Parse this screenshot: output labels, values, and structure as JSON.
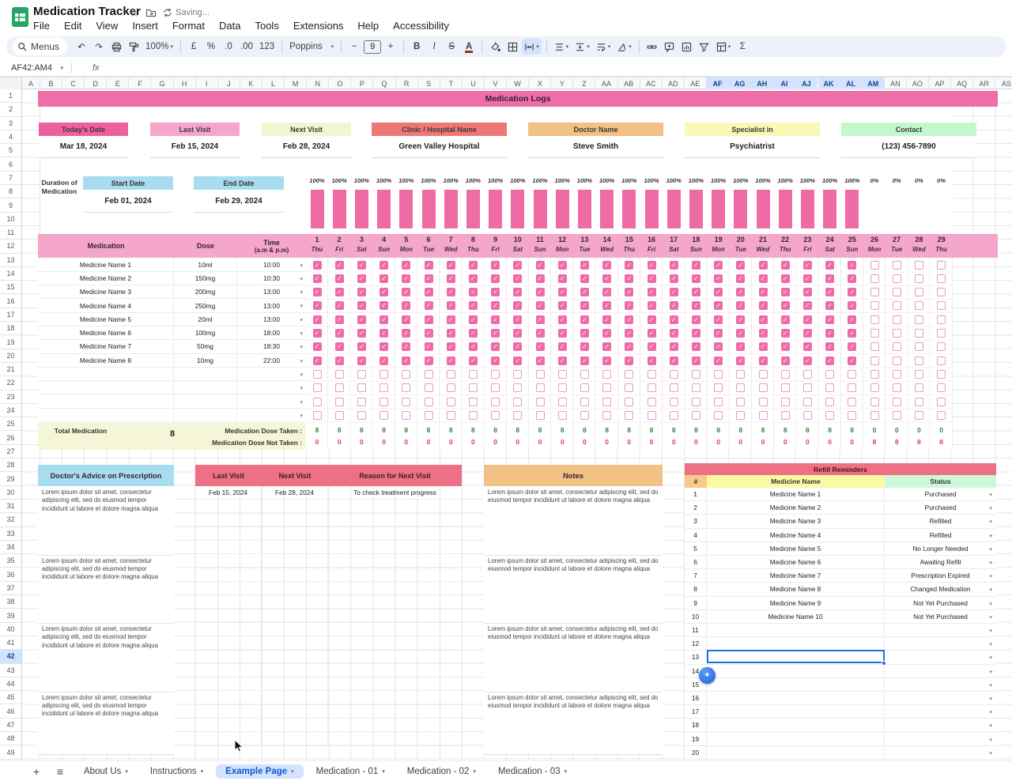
{
  "app": {
    "title": "Medication Tracker",
    "saving": "Saving...",
    "name_box": "AF42:AM4",
    "fx": "fx",
    "menus": [
      "File",
      "Edit",
      "View",
      "Insert",
      "Format",
      "Data",
      "Tools",
      "Extensions",
      "Help",
      "Accessibility"
    ]
  },
  "toolbar": {
    "menus_label": "Menus",
    "zoom": "100%",
    "currency": "£",
    "percent": "%",
    "dec_dec": ".0",
    "dec_inc": ".00",
    "num_fmt": "123",
    "font_name": "Poppins",
    "font_size": "9",
    "minus": "−",
    "plus": "+",
    "bold": "B",
    "italic": "I",
    "strike": "S",
    "text_color": "A",
    "sigma": "Σ"
  },
  "grid": {
    "columns": [
      "A",
      "B",
      "C",
      "D",
      "E",
      "F",
      "G",
      "H",
      "I",
      "J",
      "K",
      "L",
      "M",
      "N",
      "O",
      "P",
      "Q",
      "R",
      "S",
      "T",
      "U",
      "V",
      "W",
      "X",
      "Y",
      "Z",
      "AA",
      "AB",
      "AC",
      "AD",
      "AE",
      "AF",
      "AG",
      "AH",
      "AI",
      "AJ",
      "AK",
      "AL",
      "AM",
      "AN",
      "AO",
      "AP",
      "AQ",
      "AR",
      "AS"
    ],
    "selected_columns": {
      "from": "AF",
      "to": "AM"
    },
    "row_count": 49,
    "selected_row": 42
  },
  "sheet": {
    "banner": "Medication Logs",
    "cards": [
      {
        "label": "Today's Date",
        "value": "Mar 18, 2024",
        "color": "#ee5f9e"
      },
      {
        "label": "Last Visit",
        "value": "Feb 15, 2024",
        "color": "#f4a6cb"
      },
      {
        "label": "Next Visit",
        "value": "Feb 28, 2024",
        "color": "#f2f5cf"
      },
      {
        "label": "Clinic / Hospital Name",
        "value": "Green Valley Hospital",
        "color": "#ee7876"
      },
      {
        "label": "Doctor Name",
        "value": "Steve Smith",
        "color": "#f2c185"
      },
      {
        "label": "Specialist in",
        "value": "Psychiatrist",
        "color": "#f7f9b5"
      },
      {
        "label": "Contact",
        "value": "(123) 456-7890",
        "color": "#c3f8cf"
      }
    ],
    "duration": {
      "label": "Duration of Medication",
      "start_label": "Start Date",
      "start_value": "Feb 01, 2024",
      "end_label": "End Date",
      "end_value": "Feb 29, 2024"
    },
    "table": {
      "h_med": "Medication",
      "h_dose": "Dose",
      "h_time1": "Time",
      "h_time2": "(a.m & p.m)",
      "medicines": [
        {
          "name": "Medicine Name 1",
          "dose": "10ml",
          "time": "10:00"
        },
        {
          "name": "Medicine Name 2",
          "dose": "150mg",
          "time": "10:30"
        },
        {
          "name": "Medicine Name 3",
          "dose": "200mg",
          "time": "13:00"
        },
        {
          "name": "Medicine Name 4",
          "dose": "250mg",
          "time": "13:00"
        },
        {
          "name": "Medicine Name 5",
          "dose": "20ml",
          "time": "13:00"
        },
        {
          "name": "Medicine Name 6",
          "dose": "100mg",
          "time": "18:00"
        },
        {
          "name": "Medicine Name 7",
          "dose": "50mg",
          "time": "18:30"
        },
        {
          "name": "Medicine Name 8",
          "dose": "10mg",
          "time": "22:00"
        }
      ],
      "empty_row_count": 4
    },
    "days": [
      {
        "num": 1,
        "dow": "Thu",
        "pct": "100%",
        "taken": 8,
        "not_taken": 0
      },
      {
        "num": 2,
        "dow": "Fri",
        "pct": "100%",
        "taken": 8,
        "not_taken": 0
      },
      {
        "num": 3,
        "dow": "Sat",
        "pct": "100%",
        "taken": 8,
        "not_taken": 0
      },
      {
        "num": 4,
        "dow": "Sun",
        "pct": "100%",
        "taken": 8,
        "not_taken": 0
      },
      {
        "num": 5,
        "dow": "Mon",
        "pct": "100%",
        "taken": 8,
        "not_taken": 0
      },
      {
        "num": 6,
        "dow": "Tue",
        "pct": "100%",
        "taken": 8,
        "not_taken": 0
      },
      {
        "num": 7,
        "dow": "Wed",
        "pct": "100%",
        "taken": 8,
        "not_taken": 0
      },
      {
        "num": 8,
        "dow": "Thu",
        "pct": "100%",
        "taken": 8,
        "not_taken": 0
      },
      {
        "num": 9,
        "dow": "Fri",
        "pct": "100%",
        "taken": 8,
        "not_taken": 0
      },
      {
        "num": 10,
        "dow": "Sat",
        "pct": "100%",
        "taken": 8,
        "not_taken": 0
      },
      {
        "num": 11,
        "dow": "Sun",
        "pct": "100%",
        "taken": 8,
        "not_taken": 0
      },
      {
        "num": 12,
        "dow": "Mon",
        "pct": "100%",
        "taken": 8,
        "not_taken": 0
      },
      {
        "num": 13,
        "dow": "Tue",
        "pct": "100%",
        "taken": 8,
        "not_taken": 0
      },
      {
        "num": 14,
        "dow": "Wed",
        "pct": "100%",
        "taken": 8,
        "not_taken": 0
      },
      {
        "num": 15,
        "dow": "Thu",
        "pct": "100%",
        "taken": 8,
        "not_taken": 0
      },
      {
        "num": 16,
        "dow": "Fri",
        "pct": "100%",
        "taken": 8,
        "not_taken": 0
      },
      {
        "num": 17,
        "dow": "Sat",
        "pct": "100%",
        "taken": 8,
        "not_taken": 0
      },
      {
        "num": 18,
        "dow": "Sun",
        "pct": "100%",
        "taken": 8,
        "not_taken": 0
      },
      {
        "num": 19,
        "dow": "Mon",
        "pct": "100%",
        "taken": 8,
        "not_taken": 0
      },
      {
        "num": 20,
        "dow": "Tue",
        "pct": "100%",
        "taken": 8,
        "not_taken": 0
      },
      {
        "num": 21,
        "dow": "Wed",
        "pct": "100%",
        "taken": 8,
        "not_taken": 0
      },
      {
        "num": 22,
        "dow": "Thu",
        "pct": "100%",
        "taken": 8,
        "not_taken": 0
      },
      {
        "num": 23,
        "dow": "Fri",
        "pct": "100%",
        "taken": 8,
        "not_taken": 0
      },
      {
        "num": 24,
        "dow": "Sat",
        "pct": "100%",
        "taken": 8,
        "not_taken": 0
      },
      {
        "num": 25,
        "dow": "Sun",
        "pct": "100%",
        "taken": 8,
        "not_taken": 0
      },
      {
        "num": 26,
        "dow": "Mon",
        "pct": "0%",
        "taken": 0,
        "not_taken": 8
      },
      {
        "num": 27,
        "dow": "Tue",
        "pct": "0%",
        "taken": 0,
        "not_taken": 8
      },
      {
        "num": 28,
        "dow": "Wed",
        "pct": "0%",
        "taken": 0,
        "not_taken": 8
      },
      {
        "num": 29,
        "dow": "Thu",
        "pct": "0%",
        "taken": 0,
        "not_taken": 8
      }
    ],
    "checked_through_day": 25,
    "totals": {
      "label": "Total Medication",
      "value": "8",
      "taken_label": "Medication Dose Taken :",
      "not_taken_label": "Medication Dose Not Taken :"
    },
    "advice": {
      "title": "Doctor's Advice on Prescription",
      "paragraphs": [
        "Lorem ipsum dolor sit amet, consectetur adipiscing elit, sed do eiusmod tempor incididunt ut labore et dolore magna aliqua",
        "Lorem ipsum dolor sit amet, consectetur adipiscing elit, sed do eiusmod tempor incididunt ut labore et dolore magna aliqua",
        "Lorem ipsum dolor sit amet, consectetur adipiscing elit, sed do eiusmod tempor incididunt ut labore et dolore magna aliqua",
        "Lorem ipsum dolor sit amet, consectetur adipiscing elit, sed do eiusmod tempor incididunt ut labore et dolore magna aliqua"
      ]
    },
    "visits": {
      "headers": [
        "Last Visit",
        "Next Visit",
        "Reason for Next Visit"
      ],
      "rows": [
        [
          "Feb 15, 2024",
          "Feb 28, 2024",
          "To check treatment progress"
        ]
      ],
      "empty_row_count": 18
    },
    "notes": {
      "title": "Notes",
      "paragraphs": [
        "Lorem ipsum dolor sit amet, consectetur adipiscing elit, sed do eiusmod tempor incididunt ut labore et dolore magna aliqua",
        "Lorem ipsum dolor sit amet, consectetur adipiscing elit, sed do eiusmod tempor incididunt ut labore et dolore magna aliqua",
        "Lorem ipsum dolor sit amet, consectetur adipiscing elit, sed do eiusmod tempor incididunt ut labore et dolore magna aliqua",
        "Lorem ipsum dolor sit amet, consectetur adipiscing elit, sed do eiusmod tempor incididunt ut labore et dolore magna aliqua"
      ]
    },
    "refill": {
      "title": "Refill Reminders",
      "headers": [
        "#",
        "Medicine Name",
        "Status"
      ],
      "header_colors": [
        "#f8c98b",
        "#fafaa5",
        "#ccf8d7"
      ],
      "rows": [
        {
          "num": "1",
          "name": "Medicine Name 1",
          "status": "Purchased"
        },
        {
          "num": "2",
          "name": "Medicine Name 2",
          "status": "Purchased"
        },
        {
          "num": "3",
          "name": "Medicine Name 3",
          "status": "Refilled"
        },
        {
          "num": "4",
          "name": "Medicine Name 4",
          "status": "Refilled"
        },
        {
          "num": "5",
          "name": "Medicine Name 5",
          "status": "No Longer Needed"
        },
        {
          "num": "6",
          "name": "Medicine Name 6",
          "status": "Awaiting Refill"
        },
        {
          "num": "7",
          "name": "Medicine Name 7",
          "status": "Prescription Expired"
        },
        {
          "num": "8",
          "name": "Medicine Name 8",
          "status": "Changed Medication"
        },
        {
          "num": "9",
          "name": "Medicine Name 9",
          "status": "Not Yet Purchased"
        },
        {
          "num": "10",
          "name": "Medicine Name 10",
          "status": "Not Yet Purchased"
        }
      ],
      "empty_rows": [
        "11",
        "12",
        "13",
        "14",
        "15",
        "16",
        "17",
        "18",
        "19",
        "20"
      ],
      "selected_row": 13
    }
  },
  "tabs": {
    "items": [
      "About Us",
      "Instructions",
      "Example Page",
      "Medication - 01",
      "Medication - 02",
      "Medication - 03"
    ],
    "active_index": 2
  }
}
